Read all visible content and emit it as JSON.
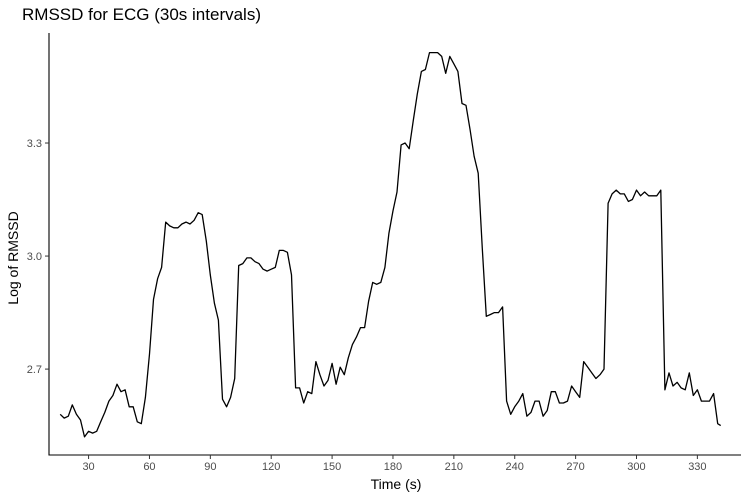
{
  "chart_data": {
    "type": "line",
    "title": "RMSSD for ECG (30s intervals)",
    "xlabel": "Time (s)",
    "ylabel": "Log of RMSSD",
    "xlim": [
      10.5,
      351.5
    ],
    "ylim": [
      2.472,
      3.592
    ],
    "x_ticks": [
      30,
      60,
      90,
      120,
      150,
      180,
      210,
      240,
      270,
      300,
      330
    ],
    "y_ticks": [
      2.7,
      3.0,
      3.3
    ],
    "grid": false,
    "series": [
      {
        "values": [
          [
            16,
            2.58
          ],
          [
            18,
            2.57
          ],
          [
            20,
            2.575
          ],
          [
            22,
            2.605
          ],
          [
            24,
            2.58
          ],
          [
            26,
            2.565
          ],
          [
            28,
            2.52
          ],
          [
            30,
            2.535
          ],
          [
            32,
            2.53
          ],
          [
            34,
            2.535
          ],
          [
            36,
            2.56
          ],
          [
            38,
            2.585
          ],
          [
            40,
            2.615
          ],
          [
            42,
            2.63
          ],
          [
            44,
            2.66
          ],
          [
            46,
            2.64
          ],
          [
            48,
            2.645
          ],
          [
            50,
            2.6
          ],
          [
            52,
            2.6
          ],
          [
            54,
            2.56
          ],
          [
            56,
            2.555
          ],
          [
            58,
            2.625
          ],
          [
            60,
            2.74
          ],
          [
            62,
            2.885
          ],
          [
            64,
            2.94
          ],
          [
            66,
            2.97
          ],
          [
            68,
            3.09
          ],
          [
            70,
            3.08
          ],
          [
            72,
            3.075
          ],
          [
            74,
            3.075
          ],
          [
            76,
            3.085
          ],
          [
            78,
            3.09
          ],
          [
            80,
            3.085
          ],
          [
            82,
            3.095
          ],
          [
            84,
            3.115
          ],
          [
            86,
            3.11
          ],
          [
            88,
            3.04
          ],
          [
            90,
            2.95
          ],
          [
            92,
            2.875
          ],
          [
            94,
            2.83
          ],
          [
            96,
            2.62
          ],
          [
            98,
            2.6
          ],
          [
            100,
            2.625
          ],
          [
            102,
            2.675
          ],
          [
            104,
            2.975
          ],
          [
            106,
            2.98
          ],
          [
            108,
            2.995
          ],
          [
            110,
            2.995
          ],
          [
            112,
            2.985
          ],
          [
            114,
            2.98
          ],
          [
            116,
            2.965
          ],
          [
            118,
            2.96
          ],
          [
            120,
            2.965
          ],
          [
            122,
            2.97
          ],
          [
            124,
            3.015
          ],
          [
            126,
            3.015
          ],
          [
            128,
            3.01
          ],
          [
            130,
            2.95
          ],
          [
            132,
            2.65
          ],
          [
            134,
            2.65
          ],
          [
            136,
            2.61
          ],
          [
            138,
            2.64
          ],
          [
            140,
            2.635
          ],
          [
            142,
            2.72
          ],
          [
            144,
            2.685
          ],
          [
            146,
            2.655
          ],
          [
            148,
            2.67
          ],
          [
            150,
            2.715
          ],
          [
            152,
            2.66
          ],
          [
            154,
            2.705
          ],
          [
            156,
            2.685
          ],
          [
            158,
            2.73
          ],
          [
            160,
            2.765
          ],
          [
            162,
            2.785
          ],
          [
            164,
            2.81
          ],
          [
            166,
            2.81
          ],
          [
            168,
            2.88
          ],
          [
            170,
            2.93
          ],
          [
            172,
            2.925
          ],
          [
            174,
            2.93
          ],
          [
            176,
            2.97
          ],
          [
            178,
            3.06
          ],
          [
            180,
            3.12
          ],
          [
            182,
            3.17
          ],
          [
            184,
            3.295
          ],
          [
            186,
            3.3
          ],
          [
            188,
            3.285
          ],
          [
            190,
            3.36
          ],
          [
            192,
            3.43
          ],
          [
            194,
            3.49
          ],
          [
            196,
            3.495
          ],
          [
            198,
            3.54
          ],
          [
            200,
            3.54
          ],
          [
            202,
            3.54
          ],
          [
            204,
            3.53
          ],
          [
            206,
            3.485
          ],
          [
            208,
            3.53
          ],
          [
            210,
            3.51
          ],
          [
            212,
            3.49
          ],
          [
            214,
            3.405
          ],
          [
            216,
            3.4
          ],
          [
            218,
            3.335
          ],
          [
            220,
            3.265
          ],
          [
            222,
            3.22
          ],
          [
            224,
            3.02
          ],
          [
            226,
            2.84
          ],
          [
            228,
            2.845
          ],
          [
            230,
            2.85
          ],
          [
            232,
            2.85
          ],
          [
            234,
            2.865
          ],
          [
            236,
            2.615
          ],
          [
            238,
            2.58
          ],
          [
            240,
            2.6
          ],
          [
            242,
            2.615
          ],
          [
            244,
            2.635
          ],
          [
            246,
            2.575
          ],
          [
            248,
            2.585
          ],
          [
            250,
            2.615
          ],
          [
            252,
            2.615
          ],
          [
            254,
            2.575
          ],
          [
            256,
            2.59
          ],
          [
            258,
            2.64
          ],
          [
            260,
            2.64
          ],
          [
            262,
            2.61
          ],
          [
            264,
            2.61
          ],
          [
            266,
            2.615
          ],
          [
            268,
            2.655
          ],
          [
            270,
            2.64
          ],
          [
            272,
            2.625
          ],
          [
            274,
            2.72
          ],
          [
            276,
            2.705
          ],
          [
            278,
            2.69
          ],
          [
            280,
            2.675
          ],
          [
            282,
            2.685
          ],
          [
            284,
            2.7
          ],
          [
            286,
            3.14
          ],
          [
            288,
            3.165
          ],
          [
            290,
            3.175
          ],
          [
            292,
            3.165
          ],
          [
            294,
            3.165
          ],
          [
            296,
            3.145
          ],
          [
            298,
            3.15
          ],
          [
            300,
            3.175
          ],
          [
            302,
            3.16
          ],
          [
            304,
            3.17
          ],
          [
            306,
            3.16
          ],
          [
            308,
            3.16
          ],
          [
            310,
            3.16
          ],
          [
            312,
            3.175
          ],
          [
            314,
            2.645
          ],
          [
            316,
            2.69
          ],
          [
            318,
            2.655
          ],
          [
            320,
            2.665
          ],
          [
            322,
            2.65
          ],
          [
            324,
            2.645
          ],
          [
            326,
            2.69
          ],
          [
            328,
            2.63
          ],
          [
            330,
            2.645
          ],
          [
            332,
            2.615
          ],
          [
            334,
            2.615
          ],
          [
            336,
            2.615
          ],
          [
            338,
            2.635
          ],
          [
            340,
            2.555
          ],
          [
            341.5,
            2.55
          ]
        ]
      }
    ]
  }
}
